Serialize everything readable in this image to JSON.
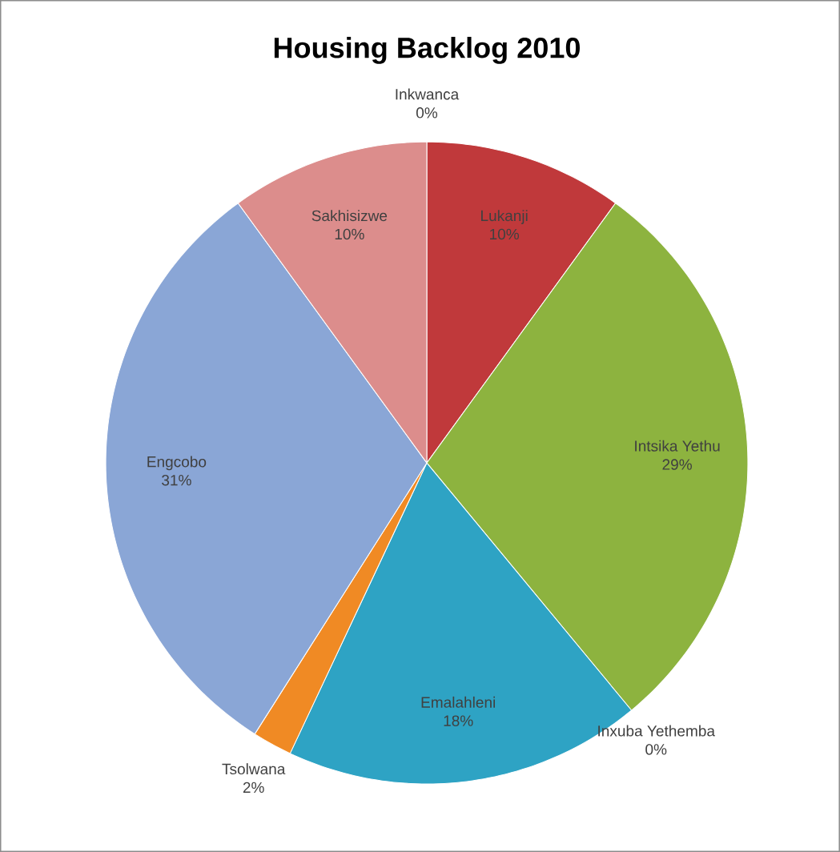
{
  "chart_data": {
    "type": "pie",
    "title": "Housing Backlog 2010",
    "categories": [
      "Inkwanca",
      "Lukanji",
      "Intsika Yethu",
      "Inxuba Yethemba",
      "Emalahleni",
      "Tsolwana",
      "Engcobo",
      "Sakhisizwe"
    ],
    "values": [
      0,
      10,
      29,
      0,
      18,
      2,
      31,
      10
    ],
    "value_labels": [
      "0%",
      "10%",
      "29%",
      "0%",
      "18%",
      "2%",
      "31%",
      "10%"
    ],
    "colors": [
      "#2f4f8f",
      "#c0393b",
      "#8db33f",
      "#7e5fa0",
      "#2ea3c4",
      "#f08a24",
      "#8aa6d6",
      "#dc8d8c"
    ]
  }
}
